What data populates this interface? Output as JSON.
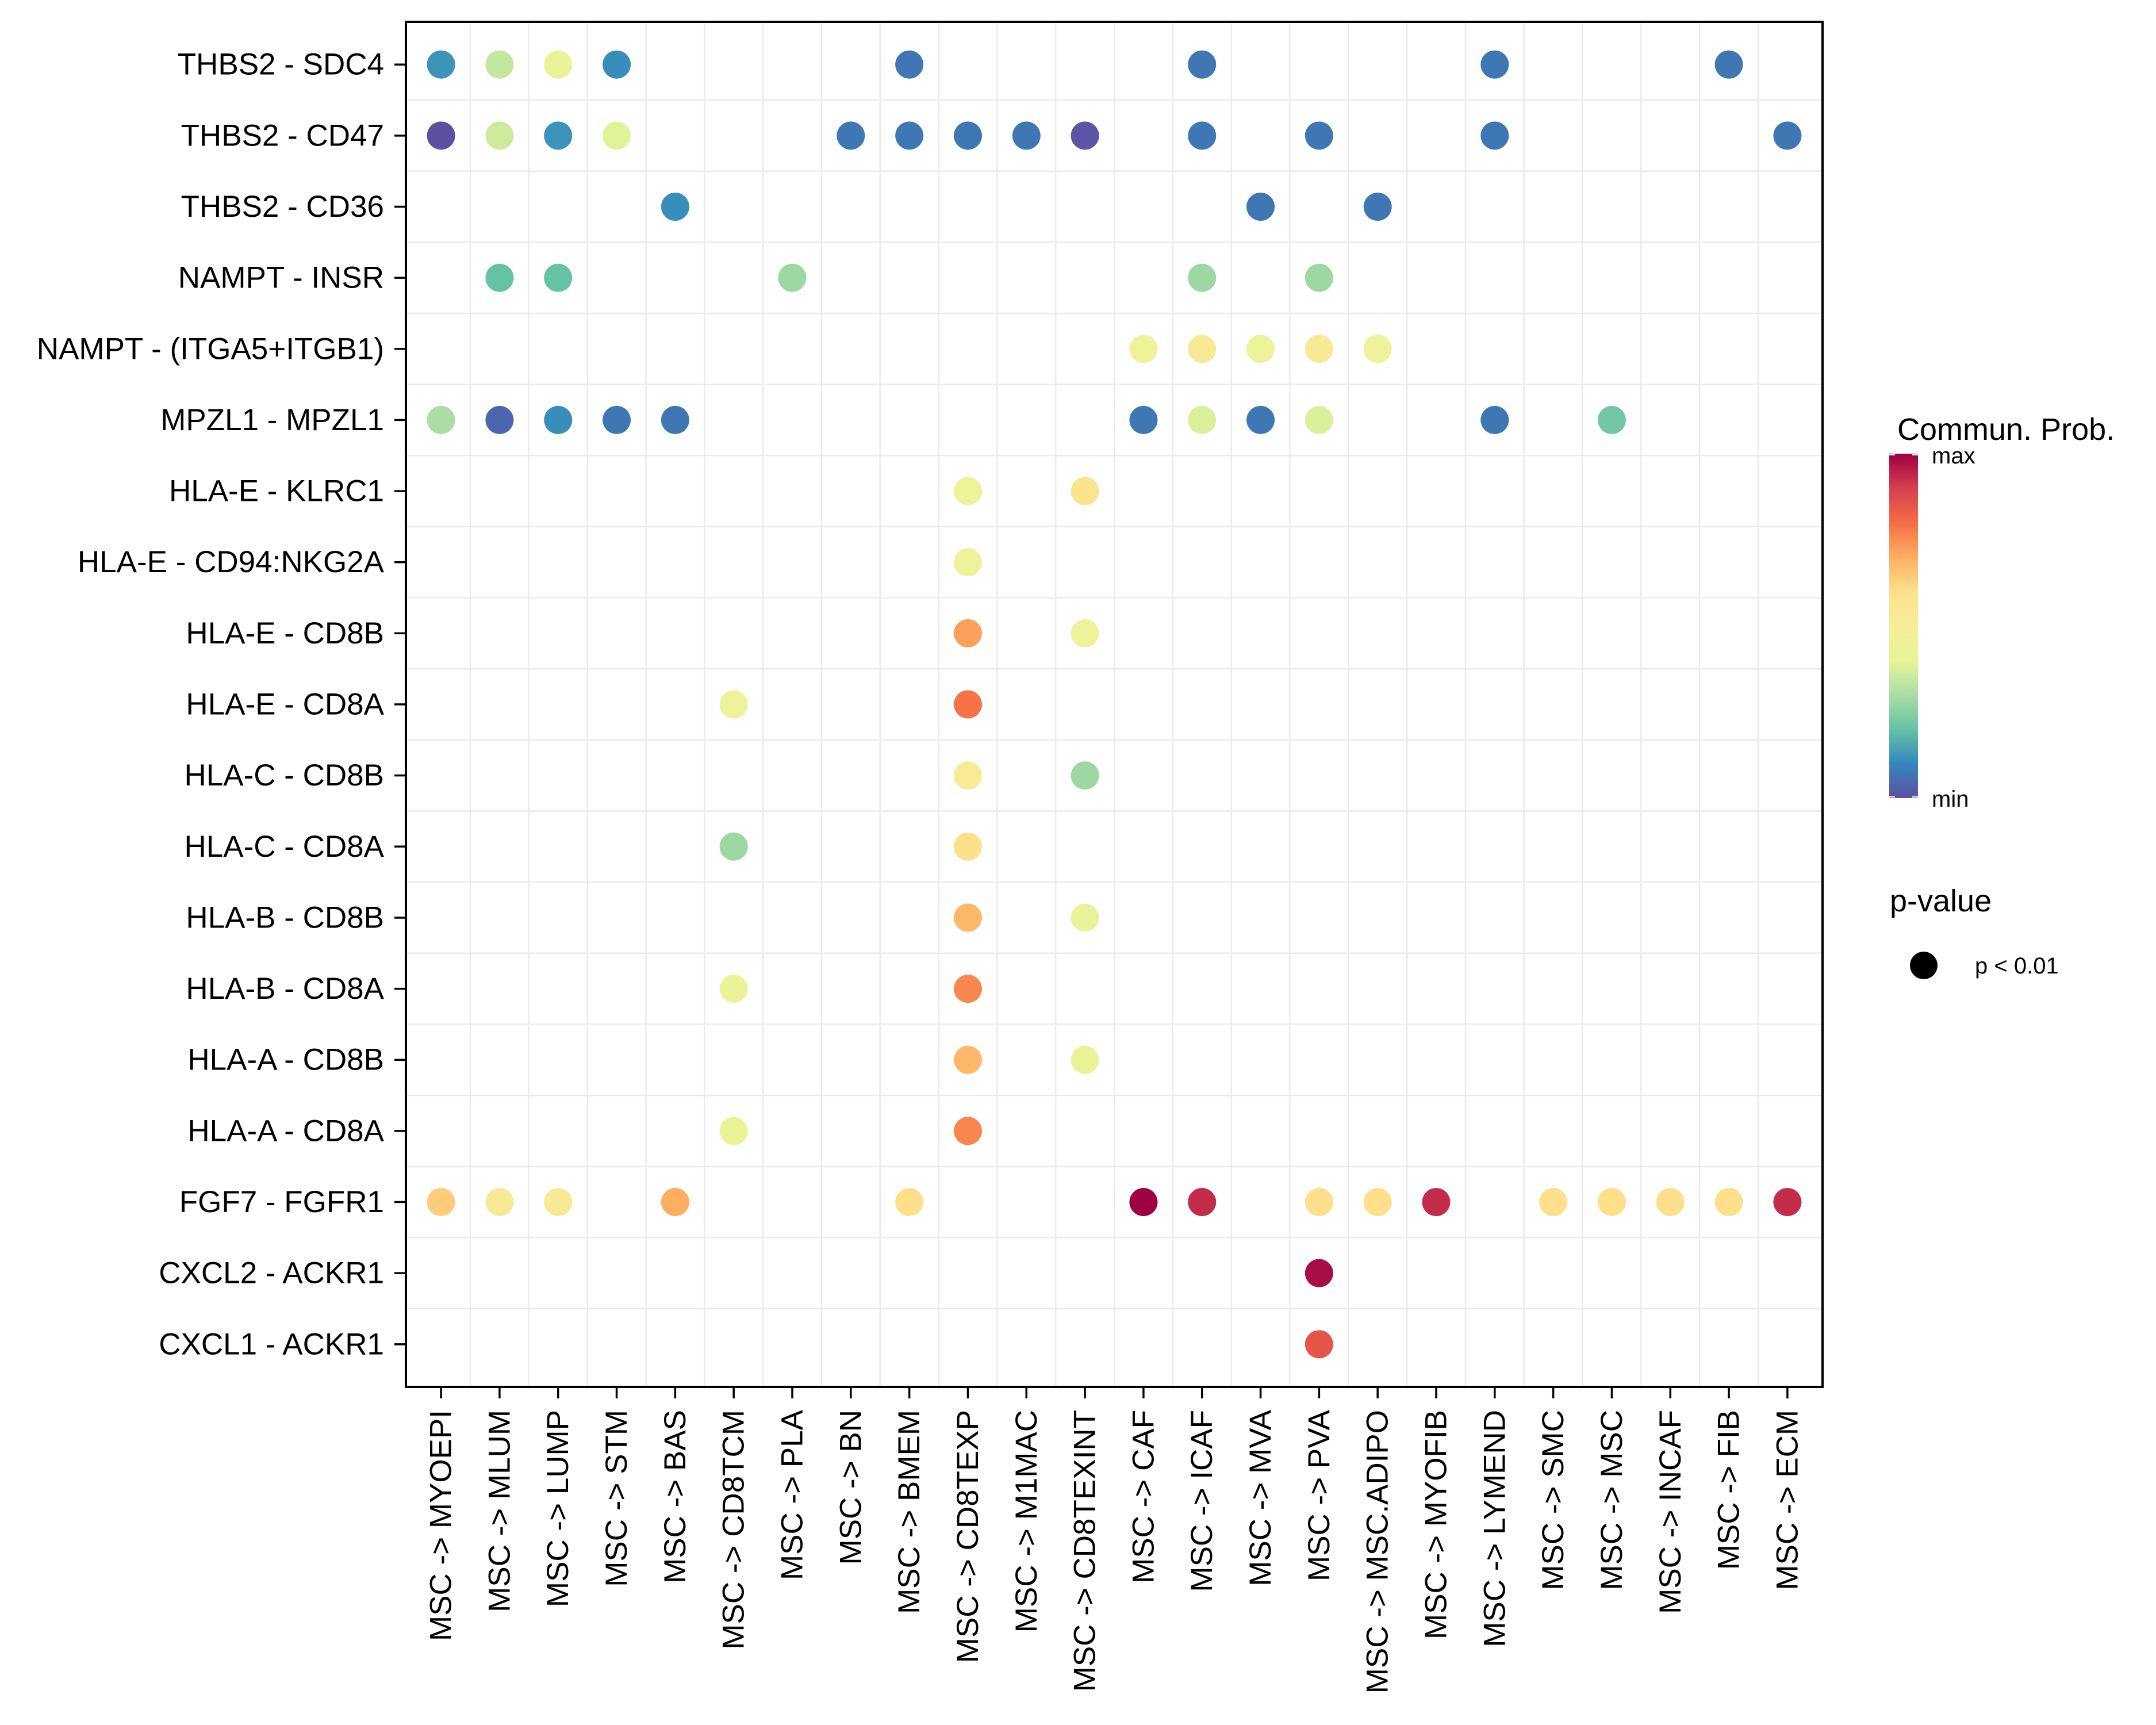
{
  "chart_data": {
    "type": "scatter",
    "subtype": "dot-matrix",
    "title": "",
    "xlabel": "",
    "ylabel": "",
    "grid": true,
    "x_categories": [
      "MSC -> MYOEPI",
      "MSC -> MLUM",
      "MSC -> LUMP",
      "MSC -> STM",
      "MSC -> BAS",
      "MSC -> CD8TCM",
      "MSC -> PLA",
      "MSC -> BN",
      "MSC -> BMEM",
      "MSC -> CD8TEXP",
      "MSC -> M1MAC",
      "MSC -> CD8TEXINT",
      "MSC -> CAF",
      "MSC -> ICAF",
      "MSC -> MVA",
      "MSC -> PVA",
      "MSC -> MSC.ADIPO",
      "MSC -> MYOFIB",
      "MSC -> LYMEND",
      "MSC -> SMC",
      "MSC -> MSC",
      "MSC -> INCAF",
      "MSC -> FIB",
      "MSC -> ECM"
    ],
    "y_categories": [
      "THBS2 - SDC4",
      "THBS2 - CD47",
      "THBS2 - CD36",
      "NAMPT - INSR",
      "NAMPT - (ITGA5+ITGB1)",
      "MPZL1 - MPZL1",
      "HLA-E - KLRC1",
      "HLA-E - CD94:NKG2A",
      "HLA-E - CD8B",
      "HLA-E - CD8A",
      "HLA-C - CD8B",
      "HLA-C - CD8A",
      "HLA-B - CD8B",
      "HLA-B - CD8A",
      "HLA-A - CD8B",
      "HLA-A - CD8A",
      "FGF7 - FGFR1",
      "CXCL2 - ACKR1",
      "CXCL1 - ACKR1"
    ],
    "value_scale": "relative communication probability, 0 = min, 1 = max (estimated from color)",
    "points": [
      {
        "row": 0,
        "col": 0,
        "value": 0.12
      },
      {
        "row": 0,
        "col": 1,
        "value": 0.34
      },
      {
        "row": 0,
        "col": 2,
        "value": 0.42
      },
      {
        "row": 0,
        "col": 3,
        "value": 0.11
      },
      {
        "row": 0,
        "col": 8,
        "value": 0.07
      },
      {
        "row": 0,
        "col": 13,
        "value": 0.07
      },
      {
        "row": 0,
        "col": 18,
        "value": 0.07
      },
      {
        "row": 0,
        "col": 22,
        "value": 0.07
      },
      {
        "row": 1,
        "col": 0,
        "value": 0.0
      },
      {
        "row": 1,
        "col": 1,
        "value": 0.36
      },
      {
        "row": 1,
        "col": 2,
        "value": 0.12
      },
      {
        "row": 1,
        "col": 3,
        "value": 0.39
      },
      {
        "row": 1,
        "col": 7,
        "value": 0.07
      },
      {
        "row": 1,
        "col": 8,
        "value": 0.07
      },
      {
        "row": 1,
        "col": 9,
        "value": 0.07
      },
      {
        "row": 1,
        "col": 10,
        "value": 0.07
      },
      {
        "row": 1,
        "col": 11,
        "value": 0.01
      },
      {
        "row": 1,
        "col": 13,
        "value": 0.07
      },
      {
        "row": 1,
        "col": 15,
        "value": 0.07
      },
      {
        "row": 1,
        "col": 18,
        "value": 0.07
      },
      {
        "row": 1,
        "col": 23,
        "value": 0.07
      },
      {
        "row": 2,
        "col": 4,
        "value": 0.11
      },
      {
        "row": 2,
        "col": 14,
        "value": 0.07
      },
      {
        "row": 2,
        "col": 16,
        "value": 0.07
      },
      {
        "row": 3,
        "col": 1,
        "value": 0.2
      },
      {
        "row": 3,
        "col": 2,
        "value": 0.2
      },
      {
        "row": 3,
        "col": 6,
        "value": 0.28
      },
      {
        "row": 3,
        "col": 13,
        "value": 0.28
      },
      {
        "row": 3,
        "col": 15,
        "value": 0.28
      },
      {
        "row": 4,
        "col": 12,
        "value": 0.45
      },
      {
        "row": 4,
        "col": 13,
        "value": 0.53
      },
      {
        "row": 4,
        "col": 14,
        "value": 0.45
      },
      {
        "row": 4,
        "col": 15,
        "value": 0.53
      },
      {
        "row": 4,
        "col": 16,
        "value": 0.45
      },
      {
        "row": 5,
        "col": 0,
        "value": 0.3
      },
      {
        "row": 5,
        "col": 1,
        "value": 0.04
      },
      {
        "row": 5,
        "col": 2,
        "value": 0.11
      },
      {
        "row": 5,
        "col": 3,
        "value": 0.07
      },
      {
        "row": 5,
        "col": 4,
        "value": 0.07
      },
      {
        "row": 5,
        "col": 12,
        "value": 0.07
      },
      {
        "row": 5,
        "col": 13,
        "value": 0.38
      },
      {
        "row": 5,
        "col": 14,
        "value": 0.07
      },
      {
        "row": 5,
        "col": 15,
        "value": 0.38
      },
      {
        "row": 5,
        "col": 18,
        "value": 0.07
      },
      {
        "row": 5,
        "col": 20,
        "value": 0.22
      },
      {
        "row": 6,
        "col": 9,
        "value": 0.45
      },
      {
        "row": 6,
        "col": 11,
        "value": 0.58
      },
      {
        "row": 7,
        "col": 9,
        "value": 0.45
      },
      {
        "row": 8,
        "col": 9,
        "value": 0.72
      },
      {
        "row": 8,
        "col": 11,
        "value": 0.45
      },
      {
        "row": 9,
        "col": 5,
        "value": 0.45
      },
      {
        "row": 9,
        "col": 9,
        "value": 0.79
      },
      {
        "row": 10,
        "col": 9,
        "value": 0.52
      },
      {
        "row": 10,
        "col": 11,
        "value": 0.28
      },
      {
        "row": 11,
        "col": 5,
        "value": 0.28
      },
      {
        "row": 11,
        "col": 9,
        "value": 0.6
      },
      {
        "row": 12,
        "col": 9,
        "value": 0.68
      },
      {
        "row": 12,
        "col": 11,
        "value": 0.42
      },
      {
        "row": 13,
        "col": 5,
        "value": 0.42
      },
      {
        "row": 13,
        "col": 9,
        "value": 0.76
      },
      {
        "row": 14,
        "col": 9,
        "value": 0.68
      },
      {
        "row": 14,
        "col": 11,
        "value": 0.42
      },
      {
        "row": 15,
        "col": 5,
        "value": 0.42
      },
      {
        "row": 15,
        "col": 9,
        "value": 0.76
      },
      {
        "row": 16,
        "col": 0,
        "value": 0.64
      },
      {
        "row": 16,
        "col": 1,
        "value": 0.53
      },
      {
        "row": 16,
        "col": 2,
        "value": 0.53
      },
      {
        "row": 16,
        "col": 4,
        "value": 0.7
      },
      {
        "row": 16,
        "col": 8,
        "value": 0.6
      },
      {
        "row": 16,
        "col": 12,
        "value": 1.0
      },
      {
        "row": 16,
        "col": 13,
        "value": 0.93
      },
      {
        "row": 16,
        "col": 15,
        "value": 0.6
      },
      {
        "row": 16,
        "col": 16,
        "value": 0.6
      },
      {
        "row": 16,
        "col": 17,
        "value": 0.93
      },
      {
        "row": 16,
        "col": 19,
        "value": 0.6
      },
      {
        "row": 16,
        "col": 20,
        "value": 0.6
      },
      {
        "row": 16,
        "col": 21,
        "value": 0.6
      },
      {
        "row": 16,
        "col": 22,
        "value": 0.6
      },
      {
        "row": 16,
        "col": 23,
        "value": 0.93
      },
      {
        "row": 17,
        "col": 15,
        "value": 0.98
      },
      {
        "row": 18,
        "col": 15,
        "value": 0.85
      }
    ],
    "color_scale": {
      "name": "Spectral",
      "stops": [
        "#5E4FA2",
        "#3288BD",
        "#66C2A5",
        "#ABDDA4",
        "#E6F598",
        "#F6EE98",
        "#FEE08B",
        "#FDAE61",
        "#F46D43",
        "#D53E4F",
        "#9E0142"
      ]
    },
    "legend": {
      "color_title": "Commun. Prob.",
      "color_max_label": "max",
      "color_min_label": "min",
      "size_title": "p-value",
      "size_entries": [
        {
          "label": "p < 0.01",
          "color": "#000000"
        }
      ],
      "position": "right"
    }
  }
}
